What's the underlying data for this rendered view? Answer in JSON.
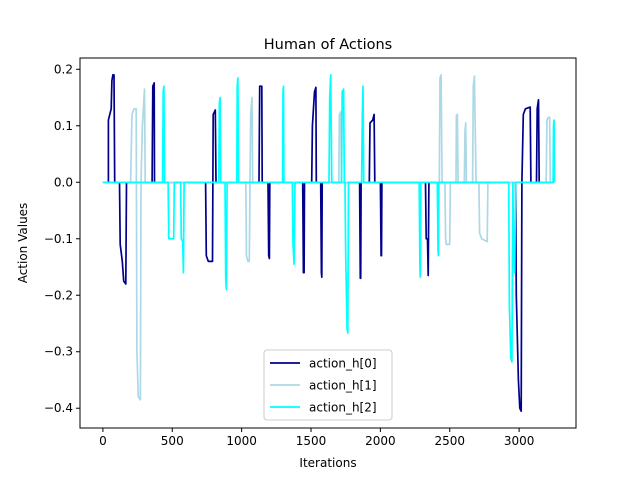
{
  "chart_data": {
    "type": "line",
    "title": "Human of Actions",
    "xlabel": "Iterations",
    "ylabel": "Action Values",
    "xlim": [
      -165,
      3410
    ],
    "ylim": [
      -0.435,
      0.22
    ],
    "xticks": [
      0,
      500,
      1000,
      1500,
      2000,
      2500,
      3000
    ],
    "xtick_labels": [
      "0",
      "500",
      "1000",
      "1500",
      "2000",
      "2500",
      "3000"
    ],
    "yticks": [
      -0.4,
      -0.3,
      -0.2,
      -0.1,
      0.0,
      0.1,
      0.2
    ],
    "ytick_labels": [
      "−0.4",
      "−0.3",
      "−0.2",
      "−0.1",
      "0.0",
      "0.1",
      "0.2"
    ],
    "grid": false,
    "legend_position": "lower center",
    "series": [
      {
        "name": "action_h[0]",
        "color": "#00008b",
        "points": [
          [
            0,
            0
          ],
          [
            40,
            0
          ],
          [
            40,
            0.11
          ],
          [
            60,
            0.13
          ],
          [
            65,
            0.18
          ],
          [
            72,
            0.19
          ],
          [
            80,
            0.19
          ],
          [
            85,
            0
          ],
          [
            120,
            0
          ],
          [
            125,
            -0.11
          ],
          [
            140,
            -0.14
          ],
          [
            150,
            -0.175
          ],
          [
            165,
            -0.18
          ],
          [
            170,
            0
          ],
          [
            355,
            0
          ],
          [
            360,
            0.17
          ],
          [
            370,
            0.176
          ],
          [
            372,
            0
          ],
          [
            740,
            0
          ],
          [
            745,
            -0.13
          ],
          [
            760,
            -0.14
          ],
          [
            790,
            -0.14
          ],
          [
            795,
            0.12
          ],
          [
            810,
            0.128
          ],
          [
            815,
            0
          ],
          [
            1125,
            0
          ],
          [
            1130,
            0.17
          ],
          [
            1145,
            0.17
          ],
          [
            1148,
            0
          ],
          [
            1190,
            0
          ],
          [
            1195,
            -0.13
          ],
          [
            1200,
            -0.135
          ],
          [
            1203,
            0
          ],
          [
            1440,
            0
          ],
          [
            1445,
            -0.16
          ],
          [
            1450,
            -0.16
          ],
          [
            1453,
            0
          ],
          [
            1505,
            0
          ],
          [
            1510,
            0.1
          ],
          [
            1525,
            0.16
          ],
          [
            1535,
            0.168
          ],
          [
            1538,
            0
          ],
          [
            1570,
            0
          ],
          [
            1575,
            -0.16
          ],
          [
            1578,
            -0.168
          ],
          [
            1581,
            0
          ],
          [
            1850,
            0
          ],
          [
            1855,
            -0.17
          ],
          [
            1858,
            -0.17
          ],
          [
            1861,
            0
          ],
          [
            1920,
            0
          ],
          [
            1925,
            0.105
          ],
          [
            1945,
            0.11
          ],
          [
            1955,
            0.12
          ],
          [
            1960,
            0
          ],
          [
            2000,
            0
          ],
          [
            2005,
            -0.13
          ],
          [
            2008,
            -0.13
          ],
          [
            2011,
            0
          ],
          [
            2325,
            0
          ],
          [
            2330,
            -0.1
          ],
          [
            2340,
            -0.1
          ],
          [
            2345,
            -0.165
          ],
          [
            2350,
            0
          ],
          [
            2975,
            0
          ],
          [
            2980,
            -0.2
          ],
          [
            2995,
            -0.35
          ],
          [
            3005,
            -0.4
          ],
          [
            3015,
            -0.405
          ],
          [
            3020,
            0
          ],
          [
            3030,
            0.12
          ],
          [
            3045,
            0.13
          ],
          [
            3080,
            0.133
          ],
          [
            3085,
            0
          ],
          [
            3125,
            0
          ],
          [
            3130,
            0.13
          ],
          [
            3140,
            0.146
          ],
          [
            3145,
            0
          ],
          [
            3250,
            0
          ]
        ]
      },
      {
        "name": "action_h[1]",
        "color": "#add8e6",
        "points": [
          [
            0,
            0
          ],
          [
            200,
            0
          ],
          [
            210,
            0.12
          ],
          [
            225,
            0.13
          ],
          [
            240,
            0.13
          ],
          [
            245,
            -0.3
          ],
          [
            255,
            -0.38
          ],
          [
            270,
            -0.385
          ],
          [
            275,
            0
          ],
          [
            285,
            0.1
          ],
          [
            300,
            0.165
          ],
          [
            305,
            0
          ],
          [
            1030,
            0
          ],
          [
            1035,
            -0.13
          ],
          [
            1045,
            -0.14
          ],
          [
            1055,
            -0.14
          ],
          [
            1060,
            0
          ],
          [
            1065,
            0.12
          ],
          [
            1075,
            0.15
          ],
          [
            1080,
            0
          ],
          [
            1700,
            0
          ],
          [
            1705,
            0.12
          ],
          [
            1715,
            0.125
          ],
          [
            1720,
            0
          ],
          [
            2425,
            0
          ],
          [
            2430,
            0.185
          ],
          [
            2438,
            0.19
          ],
          [
            2445,
            0
          ],
          [
            2465,
            0
          ],
          [
            2470,
            -0.1
          ],
          [
            2475,
            -0.11
          ],
          [
            2500,
            -0.11
          ],
          [
            2505,
            0
          ],
          [
            2545,
            0
          ],
          [
            2548,
            0.118
          ],
          [
            2555,
            0.12
          ],
          [
            2560,
            0
          ],
          [
            2605,
            0
          ],
          [
            2610,
            0.09
          ],
          [
            2615,
            0.105
          ],
          [
            2620,
            0
          ],
          [
            2665,
            0
          ],
          [
            2670,
            0.17
          ],
          [
            2678,
            0.188
          ],
          [
            2690,
            0
          ],
          [
            2710,
            0
          ],
          [
            2715,
            -0.09
          ],
          [
            2730,
            -0.1
          ],
          [
            2770,
            -0.105
          ],
          [
            2775,
            0
          ],
          [
            3195,
            0
          ],
          [
            3200,
            0.11
          ],
          [
            3210,
            0.115
          ],
          [
            3220,
            0.115
          ],
          [
            3225,
            0
          ]
        ]
      },
      {
        "name": "action_h[2]",
        "color": "#00ffff",
        "points": [
          [
            0,
            0
          ],
          [
            430,
            0
          ],
          [
            435,
            0.16
          ],
          [
            440,
            0.17
          ],
          [
            445,
            0
          ],
          [
            470,
            0
          ],
          [
            475,
            -0.1
          ],
          [
            510,
            -0.1
          ],
          [
            515,
            0
          ],
          [
            560,
            0
          ],
          [
            565,
            -0.1
          ],
          [
            575,
            -0.105
          ],
          [
            580,
            -0.16
          ],
          [
            585,
            0
          ],
          [
            835,
            0
          ],
          [
            840,
            0.14
          ],
          [
            845,
            0.15
          ],
          [
            850,
            0
          ],
          [
            880,
            0
          ],
          [
            885,
            -0.17
          ],
          [
            890,
            -0.19
          ],
          [
            895,
            0
          ],
          [
            965,
            0
          ],
          [
            968,
            0.17
          ],
          [
            973,
            0.185
          ],
          [
            978,
            0
          ],
          [
            1295,
            0
          ],
          [
            1298,
            0.16
          ],
          [
            1302,
            0.17
          ],
          [
            1305,
            0
          ],
          [
            1365,
            0
          ],
          [
            1370,
            -0.11
          ],
          [
            1378,
            -0.145
          ],
          [
            1385,
            0
          ],
          [
            1630,
            0
          ],
          [
            1635,
            0.15
          ],
          [
            1642,
            0.19
          ],
          [
            1650,
            0
          ],
          [
            1720,
            0
          ],
          [
            1725,
            0.16
          ],
          [
            1735,
            0.165
          ],
          [
            1740,
            0
          ],
          [
            1745,
            0
          ],
          [
            1750,
            -0.13
          ],
          [
            1760,
            -0.26
          ],
          [
            1765,
            -0.267
          ],
          [
            1770,
            0
          ],
          [
            1865,
            0
          ],
          [
            1870,
            0.12
          ],
          [
            1875,
            0.17
          ],
          [
            1880,
            0
          ],
          [
            2280,
            0
          ],
          [
            2285,
            -0.15
          ],
          [
            2288,
            -0.168
          ],
          [
            2292,
            0
          ],
          [
            2410,
            0
          ],
          [
            2415,
            -0.12
          ],
          [
            2418,
            -0.13
          ],
          [
            2422,
            0
          ],
          [
            2925,
            0
          ],
          [
            2930,
            -0.22
          ],
          [
            2940,
            -0.31
          ],
          [
            2948,
            -0.318
          ],
          [
            2955,
            0
          ],
          [
            2960,
            -0.12
          ],
          [
            2968,
            -0.16
          ],
          [
            2975,
            0
          ],
          [
            3245,
            0
          ],
          [
            3248,
            0.1
          ],
          [
            3252,
            0.11
          ],
          [
            3255,
            0
          ]
        ]
      }
    ]
  }
}
